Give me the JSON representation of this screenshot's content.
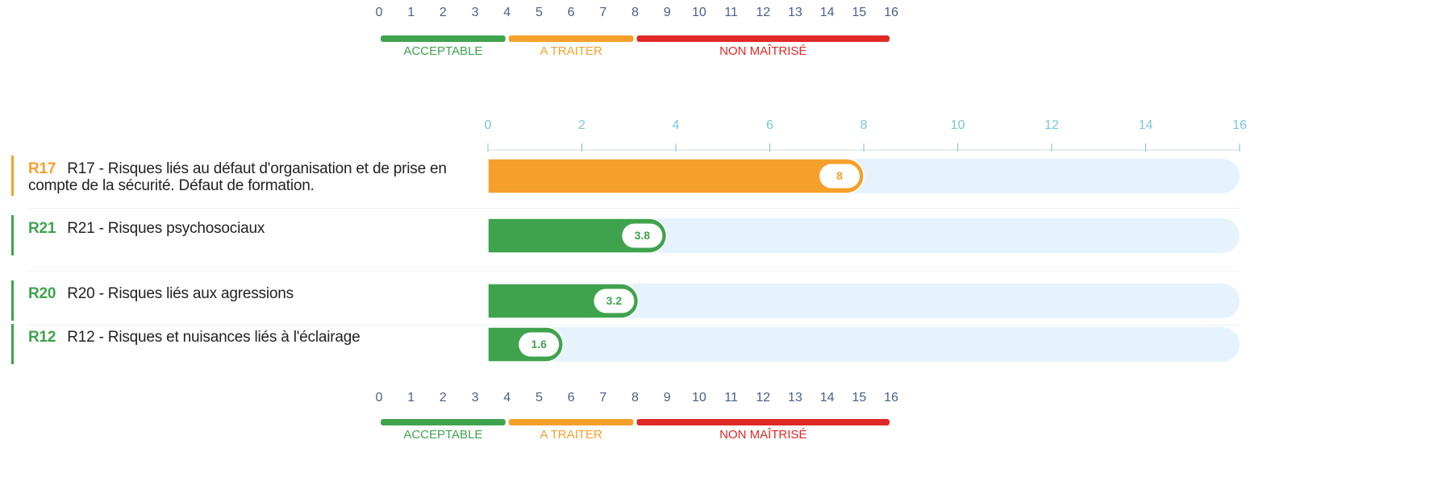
{
  "chart_data": {
    "type": "bar",
    "scale": {
      "ticks": [
        0,
        1,
        2,
        3,
        4,
        5,
        6,
        7,
        8,
        9,
        10,
        11,
        12,
        13,
        14,
        15,
        16
      ],
      "zones": [
        {
          "label": "ACCEPTABLE",
          "from": 0,
          "to": 4,
          "color": "#3fa34d"
        },
        {
          "label": "A TRAITER",
          "from": 4,
          "to": 8,
          "color": "#f5a02a"
        },
        {
          "label": "NON MAÎTRISÉ",
          "from": 8,
          "to": 16,
          "color": "#e02826"
        }
      ]
    },
    "codes": [
      "R17",
      "R21",
      "R20",
      "R12"
    ],
    "categories": [
      "R17 - Risques liés au défaut d'organisation et de prise en compte de la sécurité. Défaut de formation.",
      "R21 - Risques psychosociaux",
      "R20 - Risques liés aux agressions",
      "R12 - Risques et nuisances liés à l'éclairage"
    ],
    "values": [
      8,
      3.8,
      3.2,
      1.6
    ],
    "xlim": [
      0,
      16
    ],
    "xticks": [
      0,
      2,
      4,
      6,
      8,
      10,
      12,
      14,
      16
    ]
  }
}
